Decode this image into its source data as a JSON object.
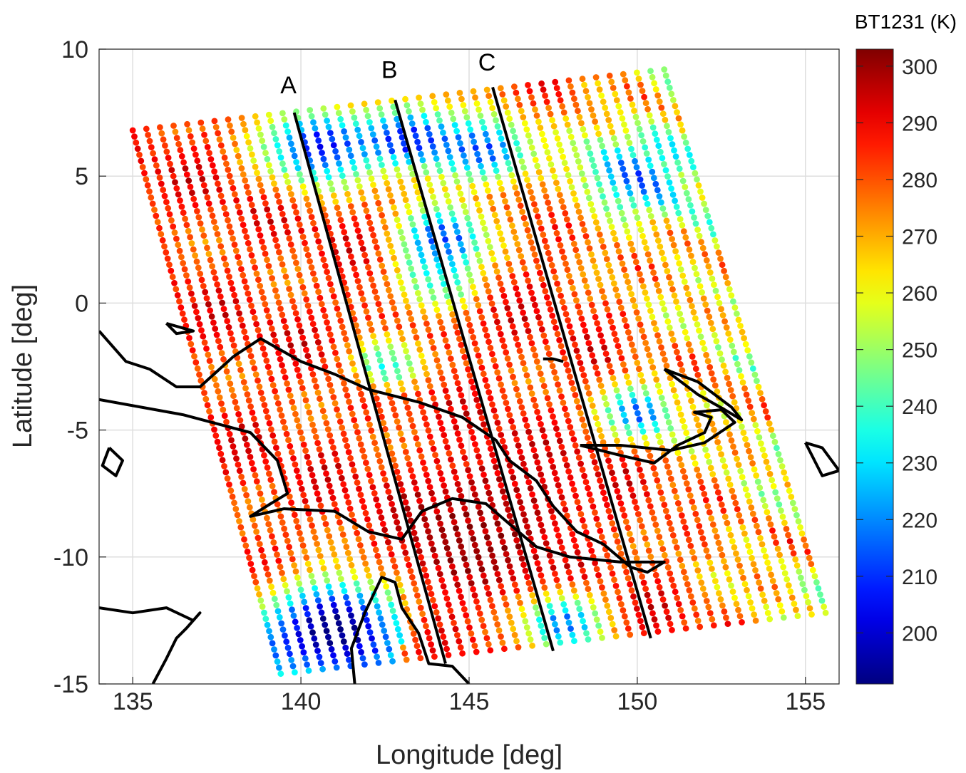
{
  "chart_data": {
    "type": "scatter",
    "title": "",
    "xlabel": "Longitude [deg]",
    "ylabel": "Latitude [deg]",
    "xlim": [
      134,
      156
    ],
    "ylim": [
      -15,
      10
    ],
    "xticks": [
      135,
      140,
      145,
      150,
      155
    ],
    "yticks": [
      10,
      5,
      0,
      -5,
      -10,
      -15
    ],
    "grid": true,
    "colorbar": {
      "title": "BT1231 (K)",
      "range": [
        191,
        303
      ],
      "ticks": [
        300,
        290,
        280,
        270,
        260,
        250,
        240,
        230,
        220,
        210,
        200
      ],
      "colormap": "jet"
    },
    "swath": {
      "top_left": [
        135,
        6.8
      ],
      "top_right": [
        150.8,
        9.2
      ],
      "bottom_left": [
        139.4,
        -14.6
      ],
      "bottom_right": [
        155.6,
        -12.2
      ],
      "scan_lines": 40
    },
    "tracks": [
      {
        "label": "A",
        "start": [
          139.8,
          7.5
        ],
        "end": [
          144.3,
          -14.2
        ],
        "label_pos": [
          139.8,
          8.6
        ]
      },
      {
        "label": "B",
        "start": [
          142.8,
          8.0
        ],
        "end": [
          147.5,
          -13.7
        ],
        "label_pos": [
          142.8,
          9.2
        ]
      },
      {
        "label": "C",
        "start": [
          145.7,
          8.5
        ],
        "end": [
          150.4,
          -13.2
        ],
        "label_pos": [
          145.7,
          9.5
        ]
      }
    ],
    "brightness_regions": [
      {
        "name": "cold-north-west",
        "lon": 140.5,
        "lat": 6.2,
        "radius": 1.6,
        "value": 205
      },
      {
        "name": "cold-north-center",
        "lon": 143.2,
        "lat": 6.5,
        "radius": 1.3,
        "value": 210
      },
      {
        "name": "cold-north-east",
        "lon": 145.5,
        "lat": 6.0,
        "radius": 1.4,
        "value": 215
      },
      {
        "name": "cold-tongue",
        "lon": 144.2,
        "lat": 2.5,
        "radius": 1.3,
        "value": 208
      },
      {
        "name": "cold-tongue-lower",
        "lon": 144.0,
        "lat": 0.6,
        "radius": 1.0,
        "value": 212
      },
      {
        "name": "cold-mid-west",
        "lon": 142.6,
        "lat": -2.3,
        "radius": 1.0,
        "value": 222
      },
      {
        "name": "cold-east-band",
        "lon": 150.0,
        "lat": -4.3,
        "radius": 1.1,
        "value": 220
      },
      {
        "name": "cold-south-east",
        "lon": 147.8,
        "lat": -12.6,
        "radius": 1.2,
        "value": 215
      },
      {
        "name": "cool-east-top",
        "lon": 149.8,
        "lat": 5.0,
        "radius": 1.8,
        "value": 232
      },
      {
        "name": "cool-south-west",
        "lon": 141.0,
        "lat": -12.4,
        "radius": 1.8,
        "value": 218
      },
      {
        "name": "warm-center",
        "lon": 143.5,
        "lat": -0.5,
        "radius": 2.0,
        "value": 290
      },
      {
        "name": "warm-south",
        "lon": 145.0,
        "lat": -9.5,
        "radius": 2.5,
        "value": 300
      },
      {
        "name": "warm-land",
        "lon": 146.5,
        "lat": -7.0,
        "radius": 2.0,
        "value": 292
      }
    ],
    "coastlines": [
      [
        [
          138.0,
          -2.1
        ],
        [
          137.0,
          -3.3
        ],
        [
          136.3,
          -3.3
        ],
        [
          135.5,
          -2.6
        ],
        [
          134.8,
          -2.3
        ],
        [
          134.0,
          -1.1
        ]
      ],
      [
        [
          134.0,
          -3.8
        ],
        [
          136.5,
          -4.4
        ],
        [
          138.5,
          -5.1
        ],
        [
          139.3,
          -6.2
        ],
        [
          139.6,
          -7.5
        ],
        [
          139.1,
          -7.9
        ],
        [
          138.5,
          -8.4
        ],
        [
          139.5,
          -8.1
        ],
        [
          141.0,
          -8.2
        ],
        [
          142.0,
          -9.0
        ],
        [
          143.0,
          -9.3
        ],
        [
          143.6,
          -8.2
        ],
        [
          144.5,
          -7.7
        ],
        [
          145.5,
          -7.9
        ],
        [
          146.2,
          -8.7
        ],
        [
          147.0,
          -9.6
        ],
        [
          148.0,
          -10.0
        ],
        [
          149.5,
          -10.2
        ],
        [
          150.8,
          -10.2
        ],
        [
          150.3,
          -10.6
        ],
        [
          149.8,
          -10.4
        ],
        [
          149.0,
          -9.5
        ],
        [
          148.2,
          -9.0
        ],
        [
          147.5,
          -8.0
        ],
        [
          147.0,
          -7.0
        ],
        [
          146.2,
          -6.2
        ],
        [
          145.8,
          -5.4
        ],
        [
          144.8,
          -4.5
        ],
        [
          143.5,
          -3.9
        ],
        [
          142.0,
          -3.4
        ],
        [
          141.0,
          -2.8
        ],
        [
          140.0,
          -2.3
        ],
        [
          138.8,
          -1.4
        ],
        [
          138.0,
          -2.1
        ]
      ],
      [
        [
          148.3,
          -5.6
        ],
        [
          149.5,
          -6.0
        ],
        [
          150.5,
          -6.3
        ],
        [
          151.2,
          -5.6
        ],
        [
          152.0,
          -5.1
        ],
        [
          152.2,
          -4.5
        ],
        [
          151.7,
          -4.3
        ],
        [
          152.5,
          -4.2
        ],
        [
          152.9,
          -4.7
        ],
        [
          152.0,
          -5.5
        ],
        [
          151.0,
          -5.8
        ],
        [
          149.5,
          -5.6
        ],
        [
          148.3,
          -5.6
        ]
      ],
      [
        [
          150.8,
          -2.6
        ],
        [
          151.8,
          -3.1
        ],
        [
          152.8,
          -4.1
        ],
        [
          153.1,
          -4.6
        ],
        [
          152.6,
          -4.2
        ],
        [
          151.8,
          -3.6
        ],
        [
          150.8,
          -2.6
        ]
      ],
      [
        [
          155.0,
          -5.5
        ],
        [
          155.5,
          -5.7
        ],
        [
          156.0,
          -6.6
        ],
        [
          155.5,
          -6.8
        ],
        [
          155.0,
          -5.5
        ]
      ],
      [
        [
          136.0,
          -0.8
        ],
        [
          136.8,
          -1.1
        ],
        [
          136.3,
          -1.2
        ],
        [
          136.0,
          -0.8
        ]
      ],
      [
        [
          134.3,
          -5.7
        ],
        [
          134.7,
          -6.2
        ],
        [
          134.5,
          -6.8
        ],
        [
          134.1,
          -6.4
        ],
        [
          134.3,
          -5.7
        ]
      ],
      [
        [
          134.0,
          -12.0
        ],
        [
          135.0,
          -12.2
        ],
        [
          136.0,
          -12.0
        ],
        [
          136.8,
          -12.5
        ],
        [
          137.0,
          -12.2
        ],
        [
          136.6,
          -12.8
        ],
        [
          136.3,
          -13.2
        ],
        [
          136.0,
          -14.0
        ],
        [
          135.6,
          -15.0
        ]
      ],
      [
        [
          141.6,
          -15.0
        ],
        [
          141.5,
          -13.6
        ],
        [
          141.9,
          -12.2
        ],
        [
          142.4,
          -10.8
        ],
        [
          142.8,
          -11.0
        ],
        [
          143.0,
          -12.0
        ],
        [
          143.5,
          -13.0
        ],
        [
          143.8,
          -14.2
        ],
        [
          144.5,
          -14.3
        ],
        [
          145.0,
          -15.0
        ]
      ],
      [
        [
          147.8,
          -2.3
        ],
        [
          147.5,
          -2.2
        ],
        [
          147.2,
          -2.2
        ]
      ]
    ]
  }
}
